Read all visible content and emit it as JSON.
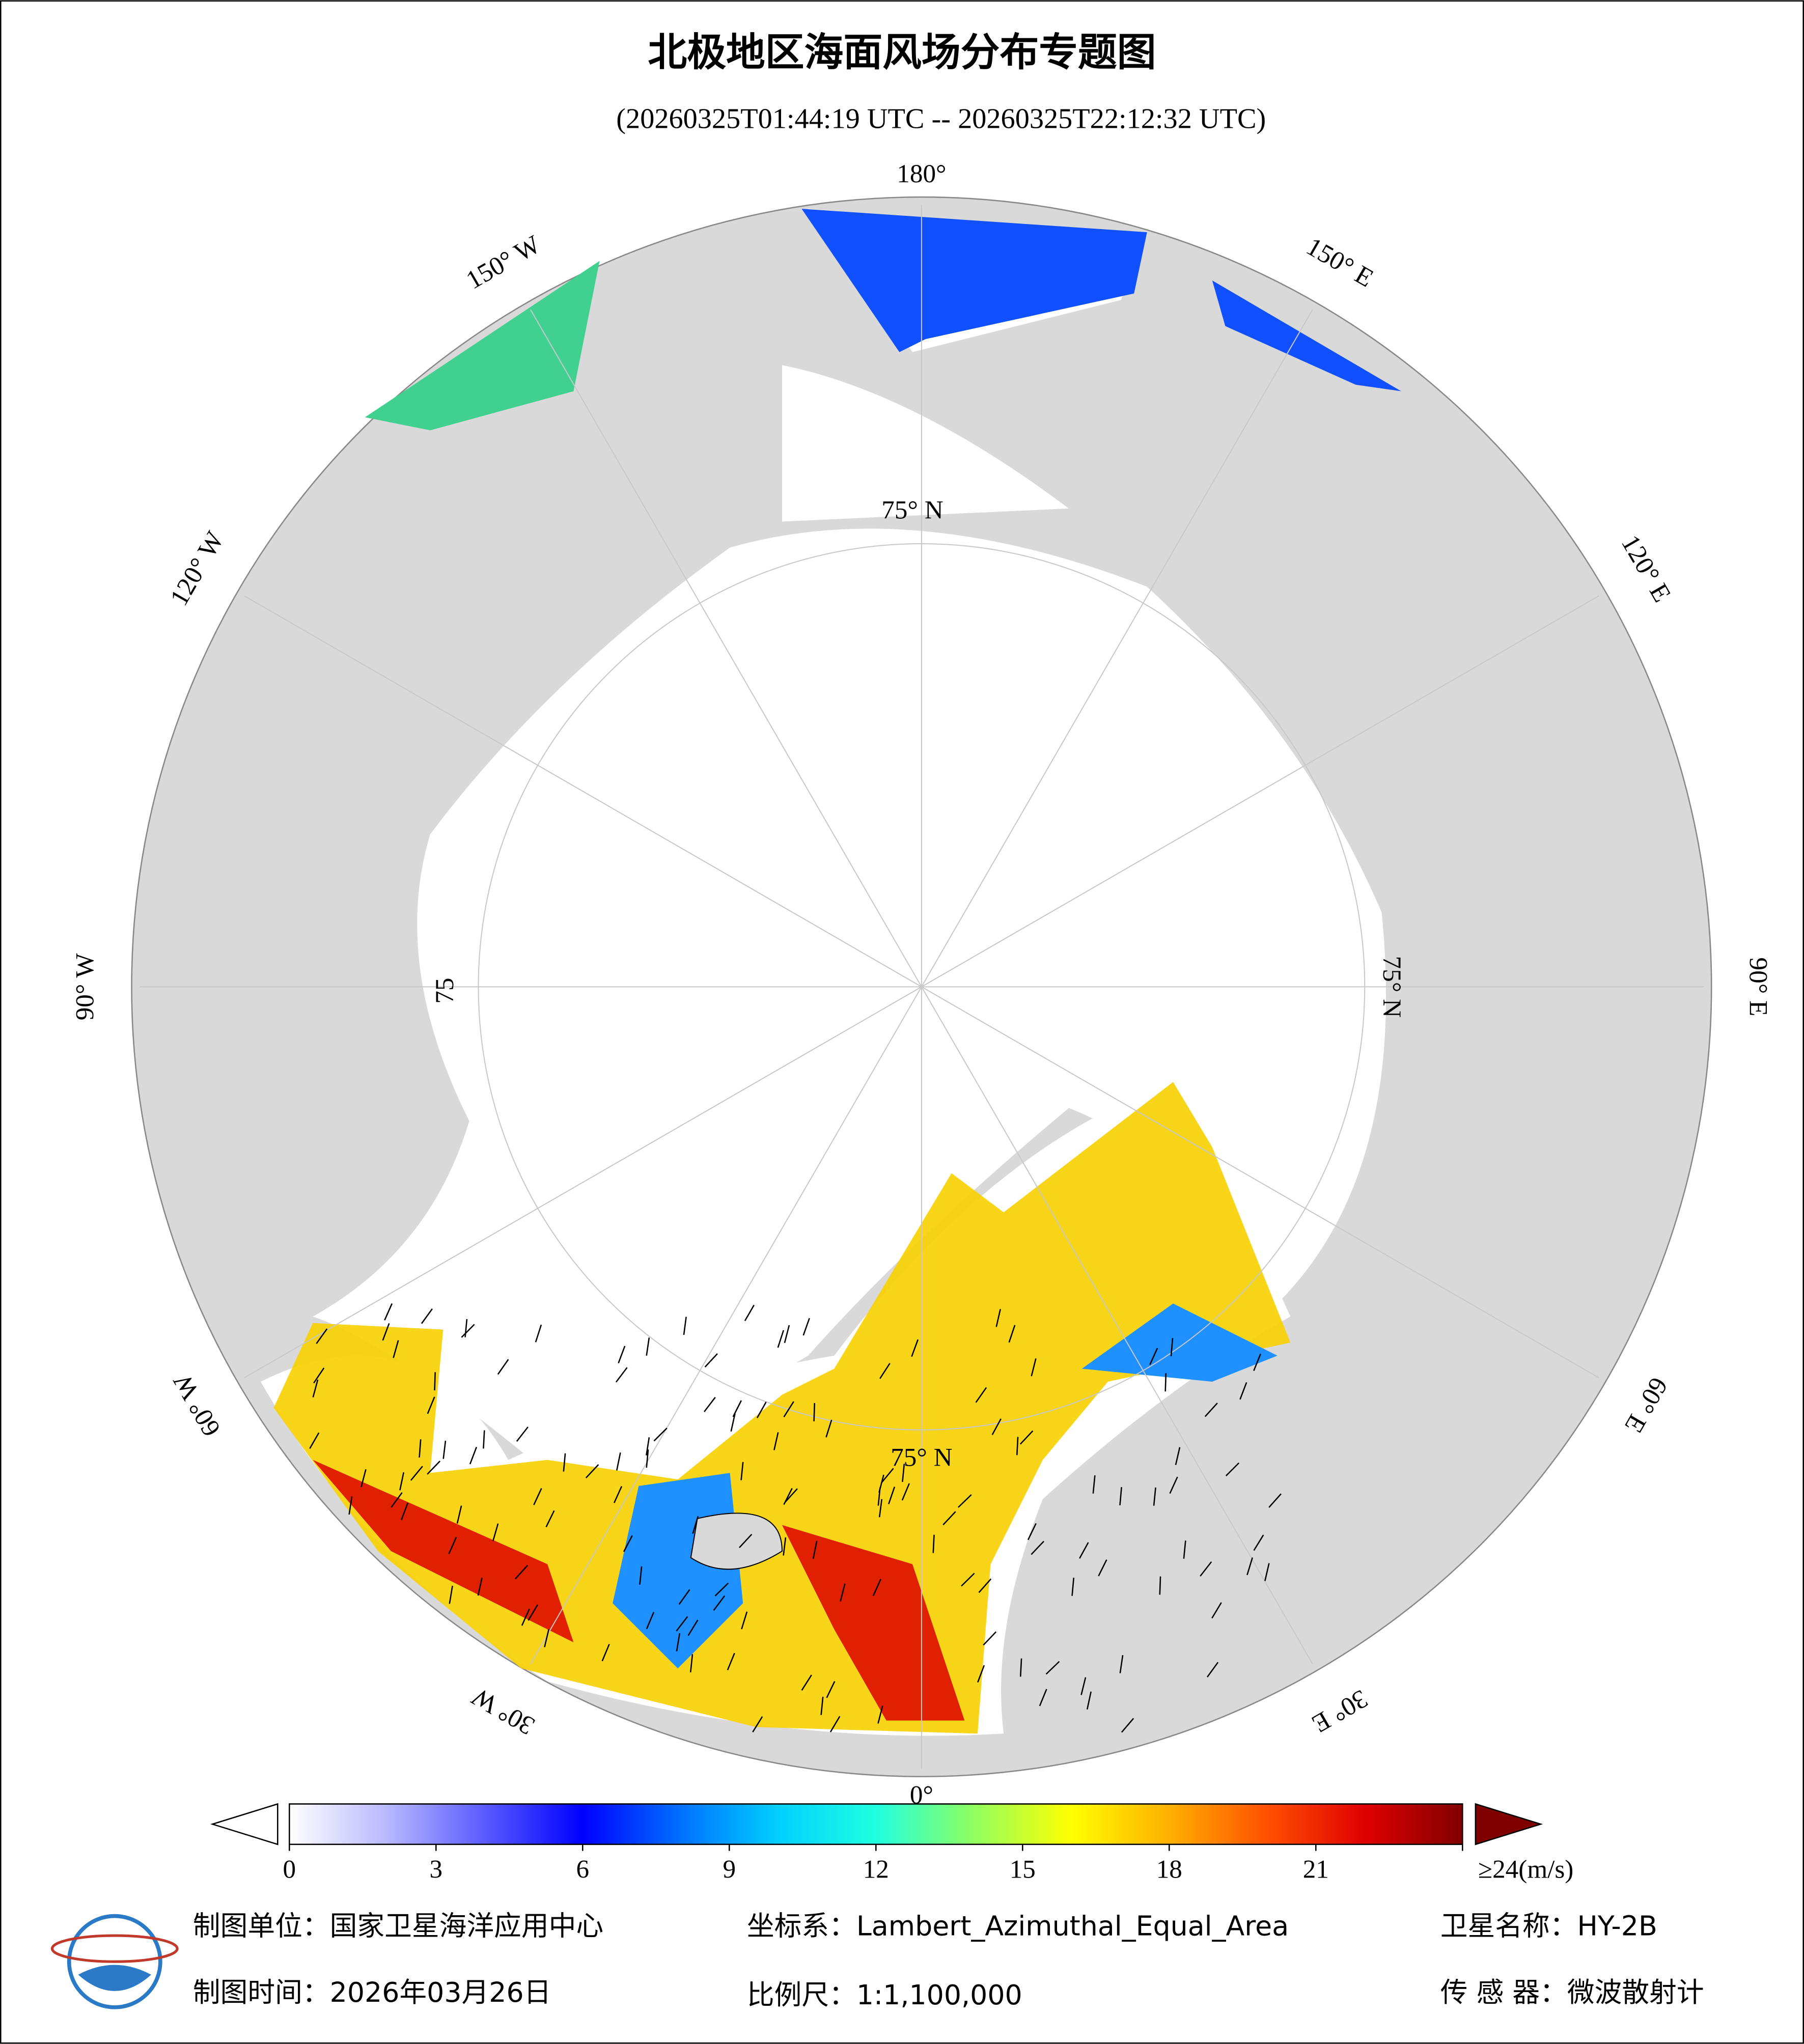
{
  "title": "北极地区海面风场分布专题图",
  "subtitle": "(20260325T01:44:19 UTC -- 20260325T22:12:32 UTC)",
  "meridian_labels": [
    "180°",
    "150° E",
    "120° E",
    "90° E",
    "60° E",
    "30° E",
    "0°",
    "30° W",
    "60° W",
    "90° W",
    "120° W",
    "150° W"
  ],
  "latitude_labels": [
    "75° N",
    "75° N",
    "75",
    "75° N"
  ],
  "colorbar": {
    "range": [
      0,
      24
    ],
    "ticks": [
      0,
      3,
      6,
      9,
      12,
      15,
      18,
      21,
      {
        "value": 24,
        "label": "≥24(m/s)"
      }
    ],
    "colors": [
      "#ffffff",
      "#b8b8ff",
      "#5a5aff",
      "#0000ff",
      "#0070ff",
      "#00d0ff",
      "#20ffe0",
      "#90ff60",
      "#ffff00",
      "#ffb000",
      "#ff5000",
      "#e00000",
      "#800000"
    ]
  },
  "footer": {
    "unit": "制图单位：国家卫星海洋应用中心",
    "coords": "坐标系：Lambert_Azimuthal_Equal_Area",
    "satellite": "卫星名称：HY-2B",
    "date": "制图时间：2026年03月26日",
    "scale": "比例尺：1:1,100,000",
    "sensor": "传 感 器：微波散射计"
  }
}
